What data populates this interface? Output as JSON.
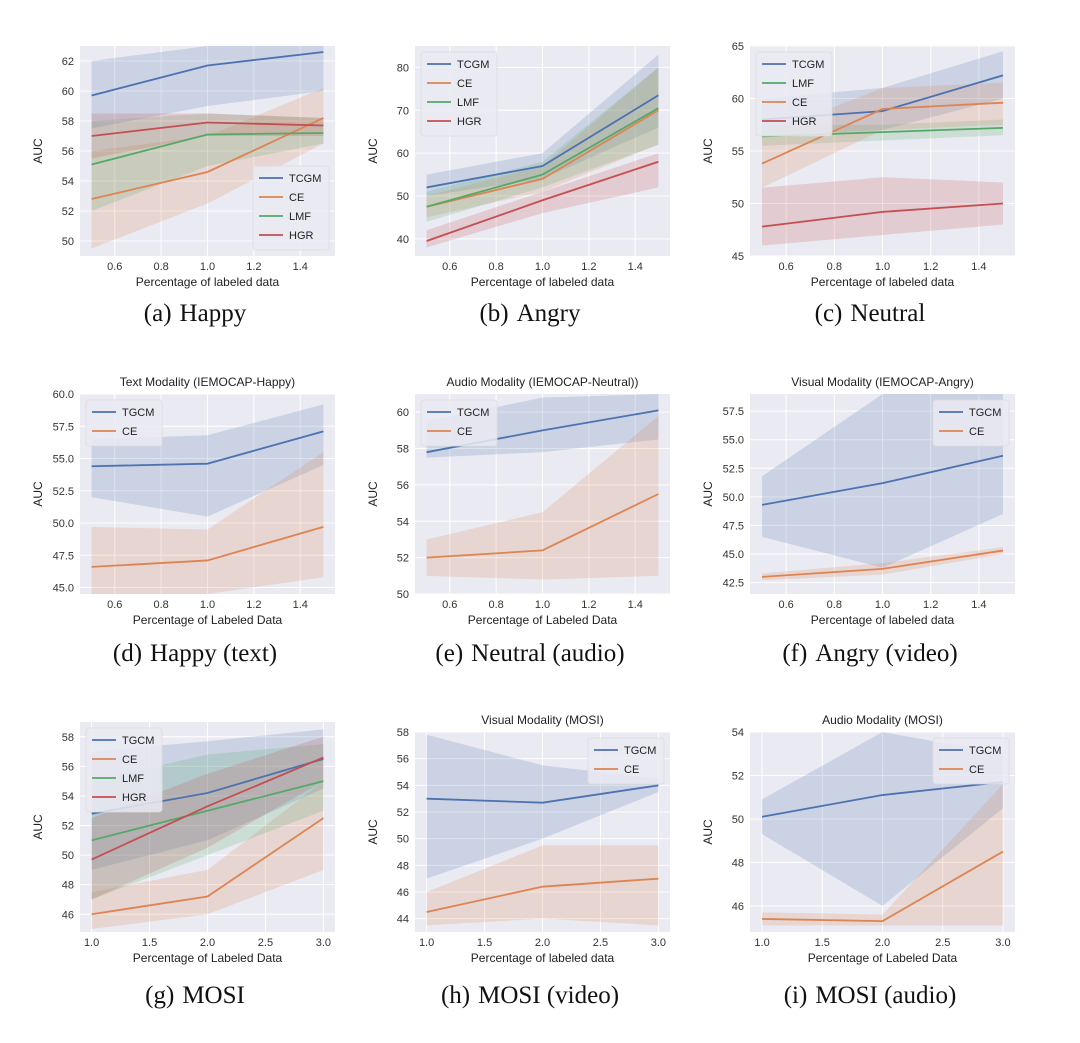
{
  "colors": {
    "TCGM": "#4c72b0",
    "TGCM": "#4c72b0",
    "CE": "#dd8452",
    "LMF": "#55a868",
    "HGR": "#c44e52"
  },
  "chart_data": [
    {
      "id": "a",
      "type": "line",
      "caption_label": "(a)",
      "caption_text": "Happy",
      "title": "",
      "xlabel": "Percentage of labeled data",
      "ylabel": "AUC",
      "xlim": [
        0.45,
        1.55
      ],
      "ylim": [
        49,
        63
      ],
      "xticks": [
        "0.6",
        "0.8",
        "1.0",
        "1.2",
        "1.4"
      ],
      "yticks": [
        "50",
        "52",
        "54",
        "56",
        "58",
        "60",
        "62"
      ],
      "legend_loc": "lower-right",
      "x": [
        0.5,
        1.0,
        1.5
      ],
      "series": [
        {
          "name": "TCGM",
          "values": [
            59.7,
            61.7,
            62.6
          ],
          "lower": [
            57.5,
            59.0,
            60.0
          ],
          "upper": [
            62.0,
            63.0,
            63.0
          ]
        },
        {
          "name": "CE",
          "values": [
            52.8,
            54.6,
            58.2
          ],
          "lower": [
            49.5,
            52.5,
            56.5
          ],
          "upper": [
            56.0,
            57.0,
            60.2
          ]
        },
        {
          "name": "LMF",
          "values": [
            55.1,
            57.1,
            57.2
          ],
          "lower": [
            52.0,
            55.0,
            56.5
          ],
          "upper": [
            58.0,
            58.5,
            58.2
          ]
        },
        {
          "name": "HGR",
          "values": [
            57.0,
            57.9,
            57.7
          ],
          "lower": [
            55.5,
            57.0,
            57.0
          ],
          "upper": [
            58.5,
            58.5,
            58.2
          ]
        }
      ]
    },
    {
      "id": "b",
      "type": "line",
      "caption_label": "(b)",
      "caption_text": "Angry",
      "title": "",
      "xlabel": "Percentage of labeled data",
      "ylabel": "AUC",
      "xlim": [
        0.45,
        1.55
      ],
      "ylim": [
        36,
        85
      ],
      "xticks": [
        "0.6",
        "0.8",
        "1.0",
        "1.2",
        "1.4"
      ],
      "yticks": [
        "40",
        "50",
        "60",
        "70",
        "80"
      ],
      "legend_loc": "upper-left",
      "x": [
        0.5,
        1.0,
        1.5
      ],
      "series": [
        {
          "name": "TCGM",
          "values": [
            52.0,
            57.0,
            73.5
          ],
          "lower": [
            50.0,
            54.0,
            66.0
          ],
          "upper": [
            55.0,
            60.0,
            83.0
          ]
        },
        {
          "name": "CE",
          "values": [
            47.5,
            54.0,
            70.0
          ],
          "lower": [
            45.0,
            51.0,
            62.0
          ],
          "upper": [
            50.0,
            57.0,
            80.0
          ]
        },
        {
          "name": "LMF",
          "values": [
            47.5,
            55.0,
            70.5
          ],
          "lower": [
            44.0,
            52.0,
            62.0
          ],
          "upper": [
            51.0,
            58.0,
            80.0
          ]
        },
        {
          "name": "HGR",
          "values": [
            39.5,
            49.0,
            58.0
          ],
          "lower": [
            38.0,
            46.0,
            52.0
          ],
          "upper": [
            42.0,
            51.0,
            60.0
          ]
        }
      ]
    },
    {
      "id": "c",
      "type": "line",
      "caption_label": "(c)",
      "caption_text": "Neutral",
      "title": "",
      "xlabel": "Percentage of labeled data",
      "ylabel": "AUC",
      "xlim": [
        0.45,
        1.55
      ],
      "ylim": [
        45,
        65
      ],
      "xticks": [
        "0.6",
        "0.8",
        "1.0",
        "1.2",
        "1.4"
      ],
      "yticks": [
        "45",
        "50",
        "55",
        "60",
        "65"
      ],
      "legend_loc": "upper-left",
      "x": [
        0.5,
        1.0,
        1.5
      ],
      "series": [
        {
          "name": "TCGM",
          "values": [
            58.0,
            58.8,
            62.2
          ],
          "lower": [
            56.5,
            57.0,
            60.0
          ],
          "upper": [
            60.0,
            61.0,
            64.5
          ]
        },
        {
          "name": "LMF",
          "values": [
            56.4,
            56.8,
            57.2
          ],
          "lower": [
            55.5,
            56.0,
            56.5
          ],
          "upper": [
            57.5,
            57.5,
            58.0
          ]
        },
        {
          "name": "CE",
          "values": [
            53.8,
            59.0,
            59.6
          ],
          "lower": [
            51.5,
            57.0,
            57.5
          ],
          "upper": [
            56.5,
            61.0,
            61.5
          ]
        },
        {
          "name": "HGR",
          "values": [
            47.8,
            49.2,
            50.0
          ],
          "lower": [
            46.0,
            47.0,
            48.0
          ],
          "upper": [
            51.5,
            52.5,
            52.0
          ]
        }
      ]
    },
    {
      "id": "d",
      "type": "line",
      "caption_label": "(d)",
      "caption_text": "Happy (text)",
      "title": "Text Modality (IEMOCAP-Happy)",
      "xlabel": "Percentage of Labeled Data",
      "ylabel": "AUC",
      "xlim": [
        0.45,
        1.55
      ],
      "ylim": [
        44.5,
        60.0
      ],
      "xticks": [
        "0.6",
        "0.8",
        "1.0",
        "1.2",
        "1.4"
      ],
      "yticks": [
        "45.0",
        "47.5",
        "50.0",
        "52.5",
        "55.0",
        "57.5",
        "60.0"
      ],
      "legend_loc": "upper-left",
      "x": [
        0.5,
        1.0,
        1.5
      ],
      "series": [
        {
          "name": "TGCM",
          "values": [
            54.4,
            54.6,
            57.1
          ],
          "lower": [
            52.0,
            50.5,
            54.5
          ],
          "upper": [
            56.5,
            56.8,
            59.2
          ]
        },
        {
          "name": "CE",
          "values": [
            46.6,
            47.1,
            49.7
          ],
          "lower": [
            44.3,
            44.5,
            45.8
          ],
          "upper": [
            49.7,
            49.5,
            55.5
          ]
        }
      ]
    },
    {
      "id": "e",
      "type": "line",
      "caption_label": "(e)",
      "caption_text": "Neutral (audio)",
      "title": "Audio Modality (IEMOCAP-Neutral))",
      "xlabel": "Percentage of Labeled Data",
      "ylabel": "AUC",
      "xlim": [
        0.45,
        1.55
      ],
      "ylim": [
        50,
        61
      ],
      "xticks": [
        "0.6",
        "0.8",
        "1.0",
        "1.2",
        "1.4"
      ],
      "yticks": [
        "50",
        "52",
        "54",
        "56",
        "58",
        "60"
      ],
      "legend_loc": "upper-left",
      "x": [
        0.5,
        1.0,
        1.5
      ],
      "series": [
        {
          "name": "TGCM",
          "values": [
            57.8,
            59.0,
            60.1
          ],
          "lower": [
            57.5,
            57.8,
            58.5
          ],
          "upper": [
            59.5,
            60.8,
            61.0
          ]
        },
        {
          "name": "CE",
          "values": [
            52.0,
            52.4,
            55.5
          ],
          "lower": [
            51.0,
            50.8,
            51.0
          ],
          "upper": [
            53.0,
            54.5,
            59.8
          ]
        }
      ]
    },
    {
      "id": "f",
      "type": "line",
      "caption_label": "(f)",
      "caption_text": "Angry (video)",
      "title": "Visual Modality (IEMOCAP-Angry)",
      "xlabel": "Percentage of labeled data",
      "ylabel": "AUC",
      "xlim": [
        0.45,
        1.55
      ],
      "ylim": [
        41.5,
        59
      ],
      "xticks": [
        "0.6",
        "0.8",
        "1.0",
        "1.2",
        "1.4"
      ],
      "yticks": [
        "42.5",
        "45.0",
        "47.5",
        "50.0",
        "52.5",
        "55.0",
        "57.5"
      ],
      "legend_loc": "upper-right",
      "x": [
        0.5,
        1.0,
        1.5
      ],
      "series": [
        {
          "name": "TGCM",
          "values": [
            49.3,
            51.2,
            53.6
          ],
          "lower": [
            46.5,
            43.8,
            48.5
          ],
          "upper": [
            51.8,
            59.0,
            59.0
          ]
        },
        {
          "name": "CE",
          "values": [
            43.0,
            43.7,
            45.3
          ],
          "lower": [
            42.7,
            43.2,
            45.0
          ],
          "upper": [
            43.3,
            44.2,
            45.6
          ]
        }
      ]
    },
    {
      "id": "g",
      "type": "line",
      "caption_label": "(g)",
      "caption_text": "MOSI",
      "title": "",
      "xlabel": "Percentage of Labeled Data",
      "ylabel": "AUC",
      "xlim": [
        0.9,
        3.1
      ],
      "ylim": [
        44.8,
        59
      ],
      "xticks": [
        "1.0",
        "1.5",
        "2.0",
        "2.5",
        "3.0"
      ],
      "yticks": [
        "46",
        "48",
        "50",
        "52",
        "54",
        "56",
        "58"
      ],
      "legend_loc": "upper-left",
      "x": [
        1.0,
        2.0,
        3.0
      ],
      "series": [
        {
          "name": "TGCM",
          "values": [
            52.8,
            54.2,
            56.5
          ],
          "lower": [
            49.0,
            51.0,
            54.5
          ],
          "upper": [
            57.0,
            57.7,
            58.5
          ]
        },
        {
          "name": "CE",
          "values": [
            46.0,
            47.2,
            52.5
          ],
          "lower": [
            45.0,
            46.0,
            49.0
          ],
          "upper": [
            47.5,
            49.0,
            55.0
          ]
        },
        {
          "name": "LMF",
          "values": [
            51.0,
            53.0,
            55.0
          ],
          "lower": [
            47.0,
            50.0,
            53.0
          ],
          "upper": [
            55.0,
            56.8,
            57.5
          ]
        },
        {
          "name": "HGR",
          "values": [
            49.7,
            53.3,
            56.6
          ],
          "lower": [
            47.0,
            50.5,
            55.0
          ],
          "upper": [
            52.5,
            55.5,
            58.0
          ]
        }
      ]
    },
    {
      "id": "h",
      "type": "line",
      "caption_label": "(h)",
      "caption_text": "MOSI (video)",
      "title": "Visual Modality (MOSI)",
      "xlabel": "Percentage of labeled data",
      "ylabel": "AUC",
      "xlim": [
        0.9,
        3.1
      ],
      "ylim": [
        43,
        58
      ],
      "xticks": [
        "1.0",
        "1.5",
        "2.0",
        "2.5",
        "3.0"
      ],
      "yticks": [
        "44",
        "46",
        "48",
        "50",
        "52",
        "54",
        "56",
        "58"
      ],
      "legend_loc": "upper-right",
      "x": [
        1.0,
        2.0,
        3.0
      ],
      "series": [
        {
          "name": "TGCM",
          "values": [
            53.0,
            52.7,
            54.0
          ],
          "lower": [
            47.0,
            50.0,
            53.5
          ],
          "upper": [
            57.8,
            55.5,
            54.5
          ]
        },
        {
          "name": "CE",
          "values": [
            44.5,
            46.4,
            47.0
          ],
          "lower": [
            43.5,
            44.0,
            43.5
          ],
          "upper": [
            46.0,
            49.5,
            49.5
          ]
        }
      ]
    },
    {
      "id": "i",
      "type": "line",
      "caption_label": "(i)",
      "caption_text": "MOSI (audio)",
      "title": "Audio Modality (MOSI)",
      "xlabel": "Percentage of Labeled Data",
      "ylabel": "AUC",
      "xlim": [
        0.9,
        3.1
      ],
      "ylim": [
        44.8,
        54
      ],
      "xticks": [
        "1.0",
        "1.5",
        "2.0",
        "2.5",
        "3.0"
      ],
      "yticks": [
        "46",
        "48",
        "50",
        "52",
        "54"
      ],
      "legend_loc": "upper-right",
      "x": [
        1.0,
        2.0,
        3.0
      ],
      "series": [
        {
          "name": "TGCM",
          "values": [
            50.1,
            51.1,
            51.7
          ],
          "lower": [
            49.3,
            46.0,
            50.5
          ],
          "upper": [
            50.9,
            54.0,
            53.0
          ]
        },
        {
          "name": "CE",
          "values": [
            45.4,
            45.3,
            48.5
          ],
          "lower": [
            45.1,
            45.1,
            45.1
          ],
          "upper": [
            45.7,
            45.6,
            51.6
          ]
        }
      ]
    }
  ]
}
